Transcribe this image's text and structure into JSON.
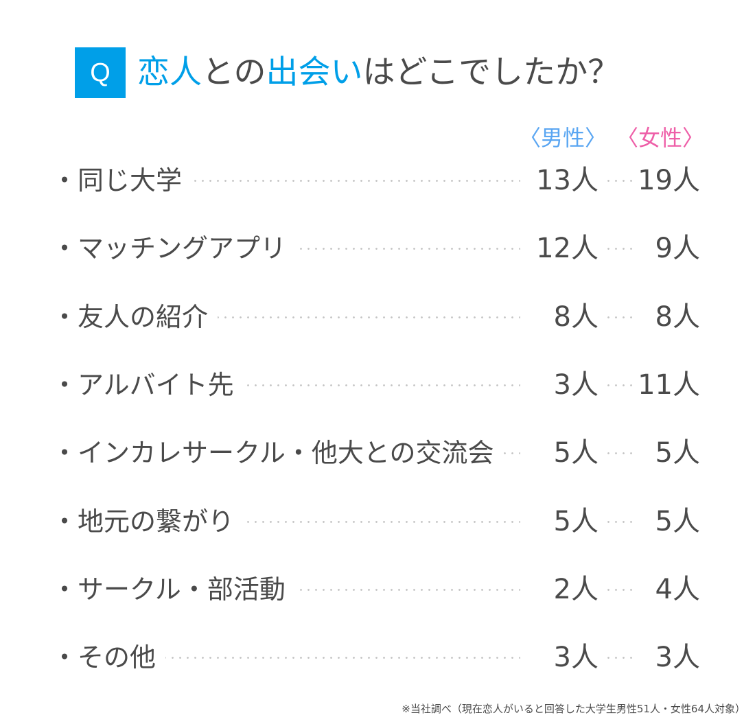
{
  "question": {
    "badge": "Q",
    "title_parts": [
      {
        "text": "恋人",
        "highlight": true
      },
      {
        "text": "との",
        "highlight": false
      },
      {
        "text": "出会い",
        "highlight": true
      },
      {
        "text": "はどこでしたか？",
        "highlight": false
      }
    ]
  },
  "colors": {
    "accent": "#009fe8",
    "male": "#5aa6f2",
    "female": "#ee5fa8",
    "text": "#4a4a4a"
  },
  "chart_data": {
    "type": "table",
    "columns": [
      "〈男性〉",
      "〈女性〉"
    ],
    "unit": "人",
    "rows": [
      {
        "label": "・同じ大学",
        "male": 13,
        "female": 19
      },
      {
        "label": "・マッチングアプリ",
        "male": 12,
        "female": 9
      },
      {
        "label": "・友人の紹介",
        "male": 8,
        "female": 8
      },
      {
        "label": "・アルバイト先",
        "male": 3,
        "female": 11
      },
      {
        "label": "・インカレサークル・他大との交流会",
        "male": 5,
        "female": 5
      },
      {
        "label": "・地元の繋がり",
        "male": 5,
        "female": 5
      },
      {
        "label": "・サークル・部活動",
        "male": 2,
        "female": 4
      },
      {
        "label": "・その他",
        "male": 3,
        "female": 3
      }
    ]
  },
  "footnote": "※当社調べ（現在恋人がいると回答した大学生男性51人・女性64人対象）"
}
